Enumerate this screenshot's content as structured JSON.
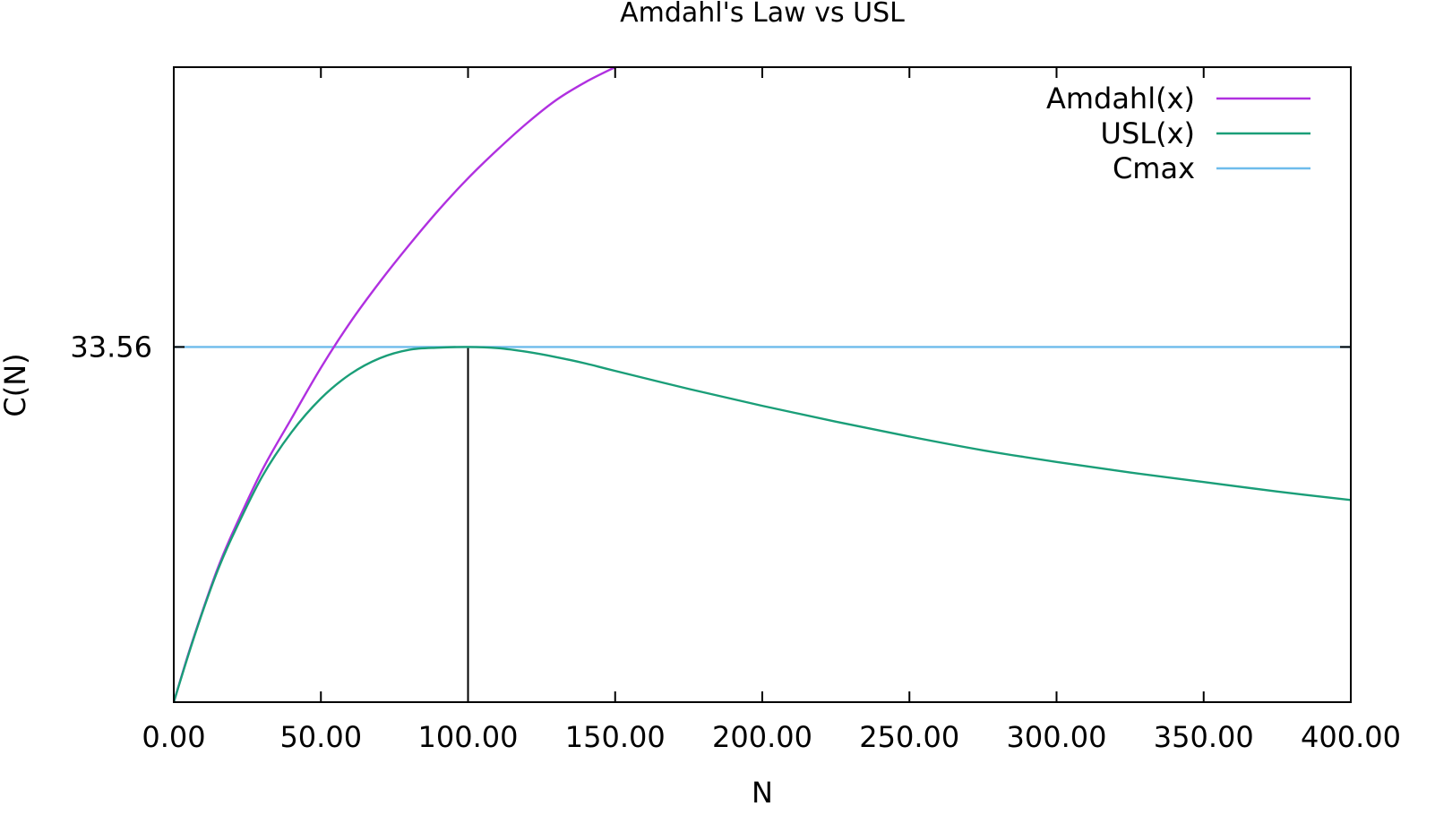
{
  "chart_data": {
    "type": "line",
    "title": "Amdahl's Law vs USL",
    "xlabel": "N",
    "ylabel": "C(N)",
    "xlim": [
      0,
      400
    ],
    "ylim": [
      0,
      60
    ],
    "x_ticks": [
      0,
      50,
      100,
      150,
      200,
      250,
      300,
      350,
      400
    ],
    "x_tick_labels": [
      "0.00",
      "50.00",
      "100.00",
      "150.00",
      "200.00",
      "250.00",
      "300.00",
      "350.00",
      "400.00"
    ],
    "y_ticks": [
      33.56
    ],
    "y_tick_labels": [
      "33.56"
    ],
    "grid": false,
    "legend_position": "top-right",
    "x": [
      0,
      5,
      10,
      15,
      20,
      30,
      40,
      50,
      60,
      70,
      80,
      90,
      100,
      110,
      120,
      130,
      140,
      150,
      175,
      200,
      225,
      250,
      275,
      300,
      325,
      350,
      375,
      400
    ],
    "series": [
      {
        "name": "Amdahl(x)",
        "color": "#b030e0",
        "values": [
          0,
          4.6,
          8.8,
          12.7,
          16.0,
          21.9,
          26.8,
          31.6,
          35.9,
          39.7,
          43.2,
          46.5,
          49.5,
          52.2,
          54.7,
          56.9,
          58.6,
          60.0,
          null,
          null,
          null,
          null,
          null,
          null,
          null,
          null,
          null,
          null
        ]
      },
      {
        "name": "USL(x)",
        "color": "#1a9e78",
        "values": [
          0,
          4.5,
          8.7,
          12.5,
          15.7,
          21.3,
          25.5,
          28.7,
          31.0,
          32.5,
          33.3,
          33.5,
          33.56,
          33.45,
          33.1,
          32.6,
          32.0,
          31.3,
          29.6,
          28.0,
          26.5,
          25.1,
          23.8,
          22.7,
          21.7,
          20.8,
          19.9,
          19.1
        ]
      },
      {
        "name": "Cmax",
        "color": "#6ebcec",
        "values": [
          33.56,
          33.56,
          33.56,
          33.56,
          33.56,
          33.56,
          33.56,
          33.56,
          33.56,
          33.56,
          33.56,
          33.56,
          33.56,
          33.56,
          33.56,
          33.56,
          33.56,
          33.56,
          33.56,
          33.56,
          33.56,
          33.56,
          33.56,
          33.56,
          33.56,
          33.56,
          33.56,
          33.56
        ]
      }
    ],
    "annotations": [
      {
        "type": "vertical-line",
        "x": 100,
        "y_from": 0,
        "y_to": 33.56,
        "color": "#000000"
      }
    ]
  }
}
